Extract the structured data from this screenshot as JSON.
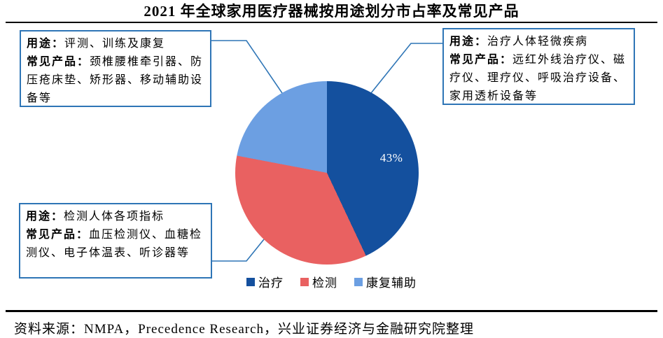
{
  "page": {
    "title": "2021 年全球家用医疗器械按用途划分市占率及常见产品",
    "source": "资料来源：NMPA，Precedence Research，兴业证券经济与金融研究院整理"
  },
  "callouts": {
    "rehab": {
      "use_label": "用途：",
      "use_text": "评测、训练及康复",
      "products_label": "常见产品：",
      "products_text": "颈椎腰椎牵引器、防压疮床垫、矫形器、移动辅助设备等"
    },
    "treatment": {
      "use_label": "用途：",
      "use_text": "治疗人体轻微疾病",
      "products_label": "常见产品：",
      "products_text": "远红外线治疗仪、磁疗仪、理疗仪、呼吸治疗设备、家用透析设备等"
    },
    "detection": {
      "use_label": "用途：",
      "use_text": "检测人体各项指标",
      "products_label": "常见产品：",
      "products_text": "血压检测仪、血糖检测仪、电子体温表、听诊器等"
    }
  },
  "chart_data": {
    "type": "pie",
    "title": "2021 年全球家用医疗器械按用途划分市占率及常见产品",
    "categories": [
      "治疗",
      "检测",
      "康复辅助"
    ],
    "values": [
      43,
      35,
      22
    ],
    "slice_labels": [
      "43%",
      "",
      ""
    ],
    "colors": [
      "#14509E",
      "#E96161",
      "#6C9FE2"
    ],
    "start_angle_deg": 0,
    "direction": "clockwise",
    "legend_position": "bottom"
  },
  "style": {
    "accent_border": "#2E75B6",
    "rule_color": "#000000",
    "slice_label_color": "#FFFFFF"
  }
}
